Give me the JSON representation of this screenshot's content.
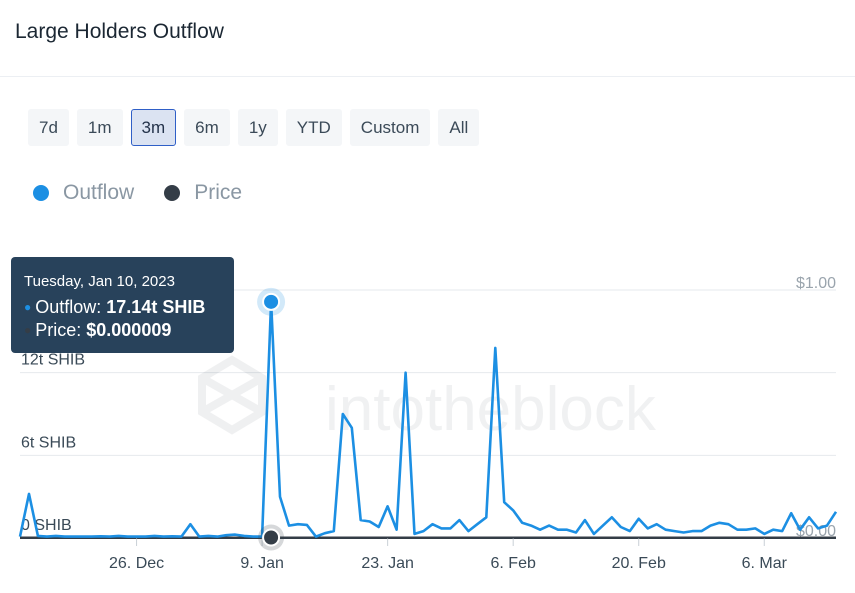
{
  "header": {
    "title": "Large Holders Outflow"
  },
  "range_buttons": [
    {
      "label": "7d",
      "active": false
    },
    {
      "label": "1m",
      "active": false
    },
    {
      "label": "3m",
      "active": true
    },
    {
      "label": "6m",
      "active": false
    },
    {
      "label": "1y",
      "active": false
    },
    {
      "label": "YTD",
      "active": false
    },
    {
      "label": "Custom",
      "active": false
    },
    {
      "label": "All",
      "active": false
    }
  ],
  "legend": [
    {
      "label": "Outflow",
      "color": "#1c8fe3"
    },
    {
      "label": "Price",
      "color": "#343d47"
    }
  ],
  "tooltip": {
    "date": "Tuesday, Jan 10, 2023",
    "outflow_label": "Outflow: ",
    "outflow_value": "17.14t SHIB",
    "price_label": "Price: ",
    "price_value": "$0.000009"
  },
  "watermark": "intotheblock",
  "chart_data": {
    "type": "line",
    "x": [
      "Dec 13",
      "Dec 14",
      "Dec 15",
      "Dec 16",
      "Dec 17",
      "Dec 18",
      "Dec 19",
      "Dec 20",
      "Dec 21",
      "Dec 22",
      "Dec 23",
      "Dec 24",
      "Dec 25",
      "Dec 26",
      "Dec 27",
      "Dec 28",
      "Dec 29",
      "Dec 30",
      "Dec 31",
      "Jan 1",
      "Jan 2",
      "Jan 3",
      "Jan 4",
      "Jan 5",
      "Jan 6",
      "Jan 7",
      "Jan 8",
      "Jan 9",
      "Jan 10",
      "Jan 11",
      "Jan 12",
      "Jan 13",
      "Jan 14",
      "Jan 15",
      "Jan 16",
      "Jan 17",
      "Jan 18",
      "Jan 19",
      "Jan 20",
      "Jan 21",
      "Jan 22",
      "Jan 23",
      "Jan 24",
      "Jan 25",
      "Jan 26",
      "Jan 27",
      "Jan 28",
      "Jan 29",
      "Jan 30",
      "Jan 31",
      "Feb 1",
      "Feb 2",
      "Feb 3",
      "Feb 4",
      "Feb 5",
      "Feb 6",
      "Feb 7",
      "Feb 8",
      "Feb 9",
      "Feb 10",
      "Feb 11",
      "Feb 12",
      "Feb 13",
      "Feb 14",
      "Feb 15",
      "Feb 16",
      "Feb 17",
      "Feb 18",
      "Feb 19",
      "Feb 20",
      "Feb 21",
      "Feb 22",
      "Feb 23",
      "Feb 24",
      "Feb 25",
      "Feb 26",
      "Feb 27",
      "Feb 28",
      "Mar 1",
      "Mar 2",
      "Mar 3",
      "Mar 4",
      "Mar 5",
      "Mar 6",
      "Mar 7",
      "Mar 8",
      "Mar 9",
      "Mar 10",
      "Mar 11",
      "Mar 12",
      "Mar 13",
      "Mar 14"
    ],
    "series": [
      {
        "name": "Outflow",
        "color": "#1c8fe3",
        "values": [
          0.1,
          3.2,
          0.15,
          0.1,
          0.15,
          0.1,
          0.1,
          0.1,
          0.1,
          0.12,
          0.1,
          0.15,
          0.1,
          0.1,
          0.1,
          0.15,
          0.1,
          0.12,
          0.1,
          1.0,
          0.1,
          0.15,
          0.1,
          0.2,
          0.25,
          0.15,
          0.1,
          0.1,
          17.14,
          3.0,
          0.9,
          1.0,
          0.95,
          0.1,
          0.35,
          0.5,
          9.0,
          8.0,
          1.3,
          1.2,
          0.8,
          2.3,
          0.6,
          12.0,
          0.3,
          0.5,
          1.0,
          0.7,
          0.7,
          1.3,
          0.5,
          1.0,
          1.5,
          13.8,
          2.6,
          2.0,
          1.1,
          0.9,
          0.6,
          0.9,
          0.6,
          0.6,
          0.4,
          1.3,
          0.3,
          0.9,
          1.5,
          0.8,
          0.5,
          1.4,
          0.7,
          1.0,
          0.6,
          0.5,
          0.4,
          0.5,
          0.5,
          0.9,
          1.1,
          1.0,
          0.6,
          0.6,
          0.7,
          0.3,
          0.6,
          0.5,
          1.8,
          0.6,
          1.5,
          0.7,
          0.9,
          1.9
        ]
      },
      {
        "name": "Price",
        "color": "#343d47",
        "values": [
          9e-06,
          8.9e-06,
          8.8e-06,
          8.5e-06,
          8.4e-06,
          8.3e-06,
          8.3e-06,
          8.2e-06,
          8.2e-06,
          8.3e-06,
          8.2e-06,
          8.2e-06,
          8.1e-06,
          8.2e-06,
          8.2e-06,
          8e-06,
          7.8e-06,
          7.9e-06,
          7.8e-06,
          7.8e-06,
          7.7e-06,
          7.8e-06,
          8.2e-06,
          8.3e-06,
          8.3e-06,
          8.4e-06,
          8.5e-06,
          8.8e-06,
          9e-06,
          9.4e-06,
          9.7e-06,
          1e-05,
          1.15e-05,
          1.09e-05,
          1.1e-05,
          1.12e-05,
          1.11e-05,
          1.08e-05,
          1.1e-05,
          1.14e-05,
          1.2e-05,
          1.22e-05,
          1.2e-05,
          1.18e-05,
          1.19e-05,
          1.2e-05,
          1.22e-05,
          1.2e-05,
          1.19e-05,
          1.18e-05,
          1.2e-05,
          1.28e-05,
          1.33e-05,
          1.28e-05,
          1.27e-05,
          1.26e-05,
          1.25e-05,
          1.24e-05,
          1.22e-05,
          1.2e-05,
          1.22e-05,
          1.23e-05,
          1.25e-05,
          1.3e-05,
          1.4e-05,
          1.38e-05,
          1.3e-05,
          1.32e-05,
          1.3e-05,
          1.35e-05,
          1.35e-05,
          1.32e-05,
          1.3e-05,
          1.28e-05,
          1.26e-05,
          1.25e-05,
          1.27e-05,
          1.24e-05,
          1.22e-05,
          1.2e-05,
          1.16e-05,
          1.15e-05,
          1.14e-05,
          1.13e-05,
          1.1e-05,
          1.08e-05,
          1.05e-05,
          1.02e-05,
          1e-05,
          1.08e-05,
          1.1e-05,
          1.11e-05
        ]
      }
    ],
    "y_left": {
      "min": 0,
      "max": 18,
      "ticks": [
        0,
        6,
        12
      ],
      "tick_labels": [
        "0 SHIB",
        "6t SHIB",
        "12t SHIB"
      ],
      "unit": "t SHIB"
    },
    "y_right": {
      "min": 0,
      "max": 1,
      "ticks": [
        0,
        1
      ],
      "tick_labels": [
        "$0.00",
        "$1.00"
      ]
    },
    "x_ticks": [
      {
        "at": "Dec 26",
        "label": "26. Dec"
      },
      {
        "at": "Jan 9",
        "label": "9. Jan"
      },
      {
        "at": "Jan 23",
        "label": "23. Jan"
      },
      {
        "at": "Feb 6",
        "label": "6. Feb"
      },
      {
        "at": "Feb 20",
        "label": "20. Feb"
      },
      {
        "at": "Mar 6",
        "label": "6. Mar"
      }
    ],
    "highlight": {
      "x": "Jan 10",
      "outflow": 17.14,
      "price": 9e-06
    },
    "grid": true,
    "legend_position": "top-left"
  }
}
